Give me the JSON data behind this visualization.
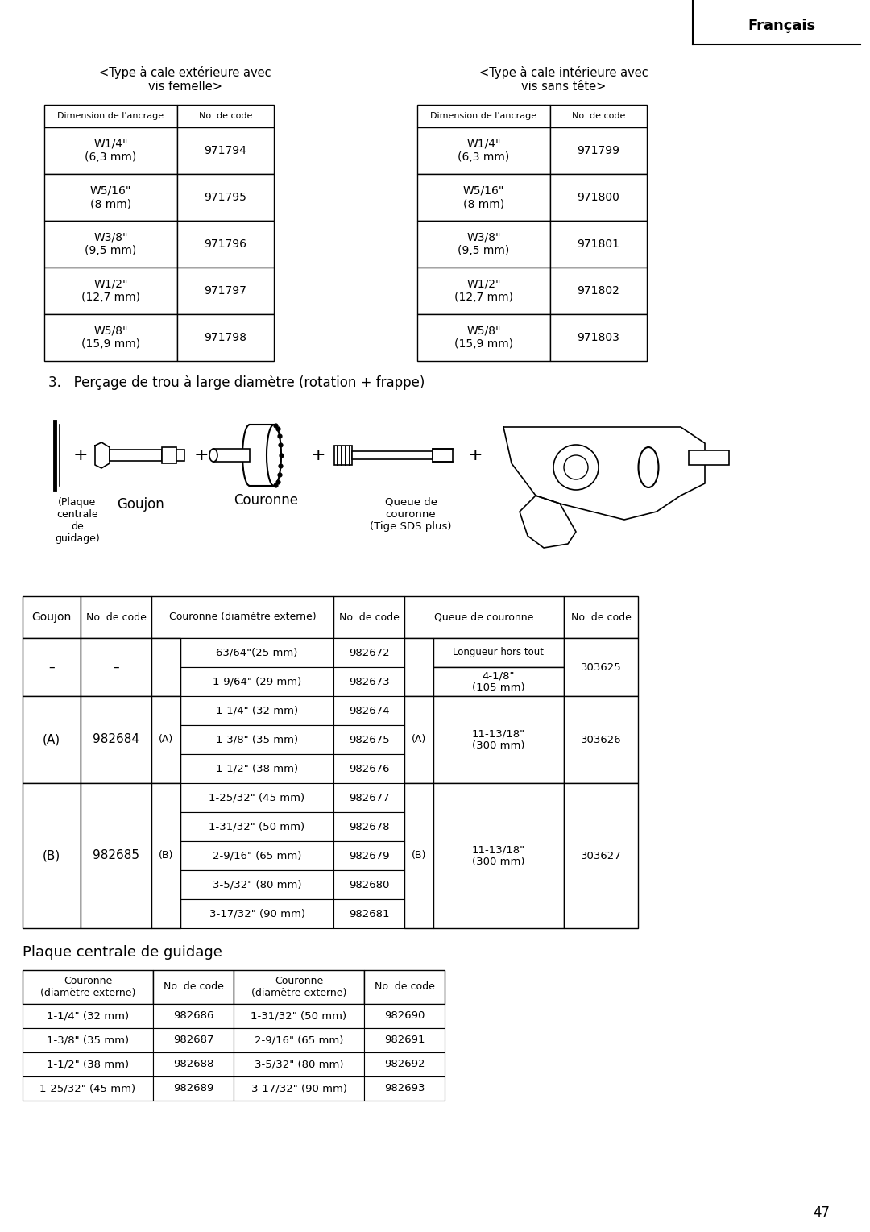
{
  "page_number": "47",
  "header_text": "Français",
  "bg_color": "#ffffff",
  "section_title_left": "<Type à cale extérieure avec\nvis femelle>",
  "section_title_right": "<Type à cale intérieure avec\nvis sans tête>",
  "table1_headers": [
    "Dimension de l'ancrage",
    "No. de code"
  ],
  "table1_rows": [
    [
      "W1/4\"\n(6,3 mm)",
      "971794"
    ],
    [
      "W5/16\"\n(8 mm)",
      "971795"
    ],
    [
      "W3/8\"\n(9,5 mm)",
      "971796"
    ],
    [
      "W1/2\"\n(12,7 mm)",
      "971797"
    ],
    [
      "W5/8\"\n(15,9 mm)",
      "971798"
    ]
  ],
  "table2_headers": [
    "Dimension de l'ancrage",
    "No. de code"
  ],
  "table2_rows": [
    [
      "W1/4\"\n(6,3 mm)",
      "971799"
    ],
    [
      "W5/16\"\n(8 mm)",
      "971800"
    ],
    [
      "W3/8\"\n(9,5 mm)",
      "971801"
    ],
    [
      "W1/2\"\n(12,7 mm)",
      "971802"
    ],
    [
      "W5/8\"\n(15,9 mm)",
      "971803"
    ]
  ],
  "section3_title": "3.   Perçage de trou à large diamètre (rotation + frappe)",
  "main_table_headers": [
    "Goujon",
    "No. de code",
    "Couronne (diamètre externe)",
    "No. de code",
    "Queue de couronne",
    "No. de code"
  ],
  "couronne_data": [
    [
      "63/64\"(25 mm)",
      "982672"
    ],
    [
      "1-9/64\" (29 mm)",
      "982673"
    ],
    [
      "1-1/4\" (32 mm)",
      "982674"
    ],
    [
      "1-3/8\" (35 mm)",
      "982675"
    ],
    [
      "1-1/2\" (38 mm)",
      "982676"
    ],
    [
      "1-25/32\" (45 mm)",
      "982677"
    ],
    [
      "1-31/32\" (50 mm)",
      "982678"
    ],
    [
      "2-9/16\" (65 mm)",
      "982679"
    ],
    [
      "3-5/32\" (80 mm)",
      "982680"
    ],
    [
      "3-17/32\" (90 mm)",
      "982681"
    ]
  ],
  "plaque_title": "Plaque centrale de guidage",
  "plaque_headers": [
    "Couronne\n(diamètre externe)",
    "No. de code",
    "Couronne\n(diamètre externe)",
    "No. de code"
  ],
  "plaque_rows": [
    [
      "1-1/4\" (32 mm)",
      "982686",
      "1-31/32\" (50 mm)",
      "982690"
    ],
    [
      "1-3/8\" (35 mm)",
      "982687",
      "2-9/16\" (65 mm)",
      "982691"
    ],
    [
      "1-1/2\" (38 mm)",
      "982688",
      "3-5/32\" (80 mm)",
      "982692"
    ],
    [
      "1-25/32\" (45 mm)",
      "982689",
      "3-17/32\" (90 mm)",
      "982693"
    ]
  ]
}
